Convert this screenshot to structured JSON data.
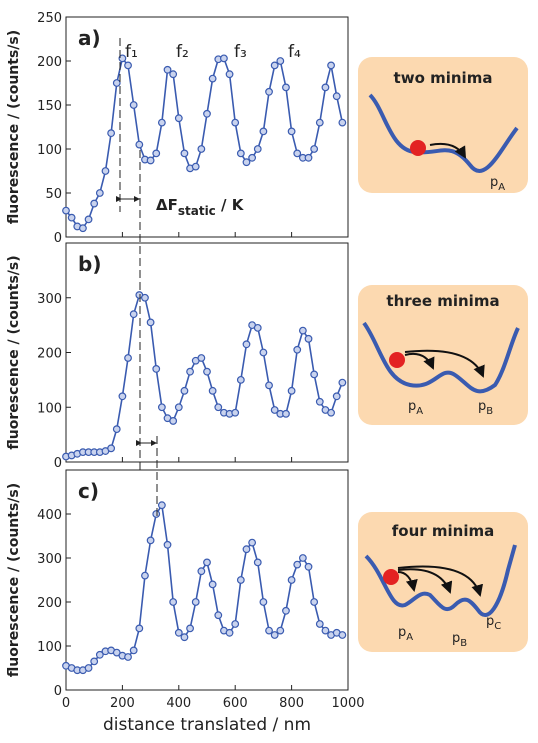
{
  "chart_data": [
    {
      "type": "line",
      "label": "a)",
      "y_label": "fluorescence / (counts/s)",
      "color": "#3a5bb0",
      "xlim": [
        0,
        1000
      ],
      "xticks": [
        0,
        200,
        400,
        600,
        800,
        1000
      ],
      "ylim": [
        0,
        250
      ],
      "yticks": [
        0,
        50,
        100,
        150,
        200,
        250
      ],
      "x": [
        0,
        20,
        40,
        60,
        80,
        100,
        120,
        140,
        160,
        180,
        200,
        220,
        240,
        260,
        280,
        300,
        320,
        340,
        360,
        380,
        400,
        420,
        440,
        460,
        480,
        500,
        520,
        540,
        560,
        580,
        600,
        620,
        640,
        660,
        680,
        700,
        720,
        740,
        760,
        780,
        800,
        820,
        840,
        860,
        880,
        900,
        920,
        940,
        960,
        980
      ],
      "values": [
        30,
        22,
        12,
        10,
        20,
        38,
        50,
        75,
        118,
        175,
        203,
        195,
        150,
        105,
        88,
        87,
        95,
        130,
        190,
        185,
        135,
        95,
        78,
        80,
        100,
        140,
        180,
        202,
        203,
        185,
        130,
        95,
        85,
        90,
        100,
        120,
        165,
        195,
        200,
        170,
        120,
        95,
        90,
        90,
        100,
        130,
        170,
        195,
        160,
        130
      ],
      "annotations": [
        "f₁",
        "f₂",
        "f₃",
        "f₄"
      ],
      "shift_label": {
        "main": "ΔF",
        "sub": "static",
        "tail": " / K"
      }
    },
    {
      "type": "line",
      "label": "b)",
      "y_label": "fluorescence / (counts/s)",
      "color": "#3a5bb0",
      "xlim": [
        0,
        1000
      ],
      "xticks": [
        0,
        200,
        400,
        600,
        800,
        1000
      ],
      "ylim": [
        0,
        400
      ],
      "yticks": [
        0,
        100,
        200,
        300
      ],
      "x": [
        0,
        20,
        40,
        60,
        80,
        100,
        120,
        140,
        160,
        180,
        200,
        220,
        240,
        260,
        280,
        300,
        320,
        340,
        360,
        380,
        400,
        420,
        440,
        460,
        480,
        500,
        520,
        540,
        560,
        580,
        600,
        620,
        640,
        660,
        680,
        700,
        720,
        740,
        760,
        780,
        800,
        820,
        840,
        860,
        880,
        900,
        920,
        940,
        960,
        980
      ],
      "values": [
        10,
        12,
        15,
        18,
        18,
        18,
        18,
        20,
        25,
        60,
        120,
        190,
        270,
        305,
        300,
        255,
        170,
        100,
        80,
        75,
        100,
        130,
        165,
        185,
        190,
        165,
        130,
        100,
        90,
        88,
        90,
        150,
        215,
        250,
        245,
        200,
        140,
        95,
        88,
        88,
        130,
        205,
        240,
        225,
        160,
        110,
        95,
        90,
        120,
        145
      ]
    },
    {
      "type": "line",
      "label": "c)",
      "y_label": "fluorescence / (counts/s)",
      "x_label": "distance translated / nm",
      "color": "#3a5bb0",
      "xlim": [
        0,
        1000
      ],
      "xticks": [
        0,
        200,
        400,
        600,
        800,
        1000
      ],
      "ylim": [
        0,
        500
      ],
      "yticks": [
        0,
        100,
        200,
        300,
        400
      ],
      "x": [
        0,
        20,
        40,
        60,
        80,
        100,
        120,
        140,
        160,
        180,
        200,
        220,
        240,
        260,
        280,
        300,
        320,
        340,
        360,
        380,
        400,
        420,
        440,
        460,
        480,
        500,
        520,
        540,
        560,
        580,
        600,
        620,
        640,
        660,
        680,
        700,
        720,
        740,
        760,
        780,
        800,
        820,
        840,
        860,
        880,
        900,
        920,
        940,
        960,
        980
      ],
      "values": [
        55,
        50,
        45,
        45,
        50,
        65,
        80,
        88,
        90,
        85,
        78,
        75,
        90,
        140,
        260,
        340,
        400,
        420,
        330,
        200,
        130,
        120,
        140,
        200,
        270,
        290,
        240,
        170,
        135,
        130,
        150,
        250,
        320,
        335,
        290,
        200,
        135,
        125,
        135,
        180,
        250,
        285,
        300,
        280,
        200,
        150,
        135,
        125,
        130,
        125
      ]
    }
  ],
  "diagrams": [
    {
      "title": "two minima",
      "labels": [
        {
          "p": "p",
          "sub": "A"
        }
      ]
    },
    {
      "title": "three minima",
      "labels": [
        {
          "p": "p",
          "sub": "A"
        },
        {
          "p": "p",
          "sub": "B"
        }
      ]
    },
    {
      "title": "four minima",
      "labels": [
        {
          "p": "p",
          "sub": "A"
        },
        {
          "p": "p",
          "sub": "B"
        },
        {
          "p": "p",
          "sub": "C"
        }
      ]
    }
  ]
}
